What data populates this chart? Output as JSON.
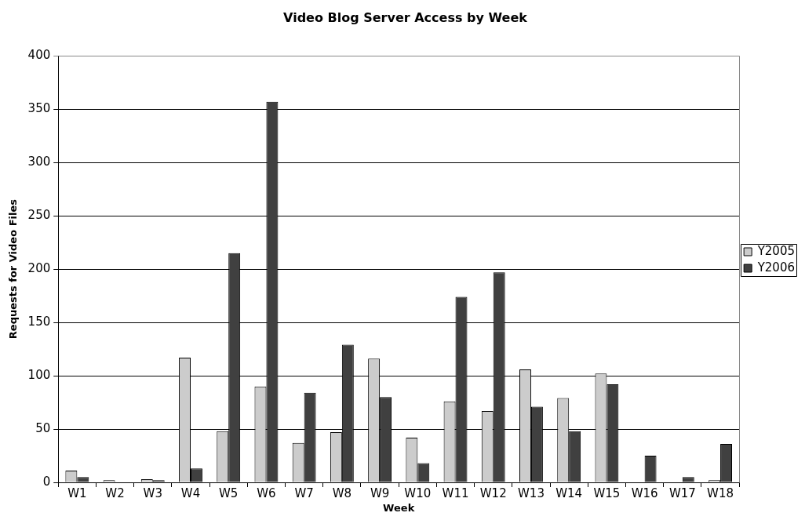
{
  "chart_data": {
    "type": "bar",
    "title": "Video Blog Server Access by Week",
    "xlabel": "Week",
    "ylabel": "Requests for Video Files",
    "categories": [
      "W1",
      "W2",
      "W3",
      "W4",
      "W5",
      "W6",
      "W7",
      "W8",
      "W9",
      "W10",
      "W11",
      "W12",
      "W13",
      "W14",
      "W15",
      "W16",
      "W17",
      "W18"
    ],
    "series": [
      {
        "name": "Y2005",
        "color": "#cccccc",
        "values": [
          11,
          2,
          3,
          117,
          48,
          90,
          37,
          47,
          116,
          42,
          76,
          67,
          106,
          79,
          102,
          null,
          null,
          2
        ]
      },
      {
        "name": "Y2006",
        "color": "#404040",
        "values": [
          5,
          null,
          2,
          13,
          215,
          357,
          84,
          129,
          80,
          18,
          174,
          197,
          71,
          48,
          92,
          25,
          5,
          36
        ]
      }
    ],
    "ylim": [
      0,
      400
    ],
    "yticks": [
      0,
      50,
      100,
      150,
      200,
      250,
      300,
      350,
      400
    ],
    "grid": "y",
    "legend": "right"
  }
}
